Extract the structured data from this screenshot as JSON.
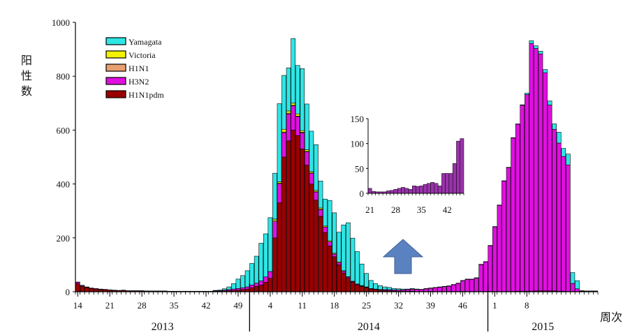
{
  "chart_data": [
    {
      "type": "bar",
      "stacked": true,
      "ylabel": "阳性数",
      "xlabel": "周次",
      "ylim": [
        0,
        1000
      ],
      "yticks": [
        0,
        200,
        400,
        600,
        800,
        1000
      ],
      "x_start_week": 14,
      "xticks": [
        "14",
        "21",
        "28",
        "35",
        "42",
        "49",
        "4",
        "11",
        "18",
        "25",
        "32",
        "39",
        "46",
        "1",
        "8"
      ],
      "year_labels": [
        "2013",
        "2014",
        "2015"
      ],
      "legend": {
        "placement": "top-left",
        "entries": [
          "Yamagata",
          "Victoria",
          "H1N1",
          "H3N2",
          "H1N1pdm"
        ]
      },
      "colors": {
        "Yamagata": "#2ee6e6",
        "Victoria": "#f2f200",
        "H1N1": "#e8a070",
        "H3N2": "#e00fe0",
        "H1N1pdm": "#990000",
        "outline": "#000000"
      },
      "arrow_color": "#5b82c0",
      "grid": false,
      "series": [
        {
          "name": "H1N1pdm",
          "values": [
            30,
            20,
            15,
            12,
            10,
            8,
            7,
            6,
            5,
            4,
            5,
            3,
            3,
            3,
            3,
            2,
            2,
            2,
            2,
            2,
            1,
            1,
            1,
            1,
            1,
            1,
            1,
            1,
            1,
            1,
            2,
            2,
            3,
            4,
            5,
            6,
            8,
            10,
            15,
            20,
            25,
            35,
            50,
            200,
            330,
            500,
            560,
            600,
            580,
            530,
            470,
            400,
            340,
            280,
            220,
            170,
            130,
            100,
            70,
            50,
            35,
            25,
            20,
            15,
            10,
            8,
            6,
            5,
            4,
            3,
            2,
            2,
            2,
            2,
            1,
            1,
            1,
            1,
            1,
            1,
            1,
            1,
            1,
            1,
            1,
            1,
            1,
            1,
            1,
            1,
            1,
            1,
            1,
            1,
            1,
            1,
            2,
            2,
            2,
            2,
            3,
            3,
            3,
            3,
            3,
            2,
            2,
            1,
            1,
            1,
            1,
            1,
            1,
            1
          ]
        },
        {
          "name": "H3N2",
          "values": [
            5,
            3,
            2,
            2,
            2,
            2,
            2,
            1,
            1,
            1,
            1,
            1,
            1,
            1,
            1,
            1,
            1,
            1,
            1,
            1,
            1,
            1,
            1,
            1,
            1,
            1,
            1,
            1,
            1,
            1,
            2,
            2,
            3,
            4,
            5,
            6,
            7,
            8,
            10,
            12,
            15,
            20,
            25,
            60,
            70,
            90,
            100,
            90,
            70,
            60,
            50,
            40,
            30,
            25,
            20,
            15,
            10,
            8,
            6,
            4,
            3,
            3,
            2,
            2,
            2,
            2,
            2,
            3,
            4,
            4,
            5,
            5,
            6,
            8,
            8,
            7,
            10,
            12,
            14,
            16,
            18,
            20,
            25,
            30,
            40,
            45,
            45,
            50,
            100,
            110,
            170,
            240,
            320,
            410,
            460,
            570,
            620,
            690,
            730,
            920,
            900,
            880,
            810,
            690,
            600,
            550,
            500,
            470,
            30,
            10,
            2,
            1,
            1,
            1
          ]
        },
        {
          "name": "H1N1",
          "values": [
            1,
            1,
            1,
            0,
            0,
            0,
            0,
            0,
            0,
            0,
            0,
            0,
            0,
            0,
            0,
            0,
            0,
            0,
            0,
            0,
            0,
            0,
            0,
            0,
            0,
            0,
            0,
            0,
            0,
            0,
            0,
            0,
            0,
            0,
            0,
            0,
            0,
            0,
            0,
            0,
            0,
            0,
            0,
            5,
            3,
            3,
            3,
            2,
            2,
            2,
            1,
            1,
            1,
            1,
            0,
            0,
            0,
            0,
            0,
            0,
            0,
            0,
            0,
            0,
            0,
            0,
            0,
            0,
            0,
            0,
            0,
            0,
            0,
            0,
            0,
            0,
            0,
            0,
            0,
            0,
            0,
            0,
            0,
            0,
            0,
            0,
            0,
            0,
            0,
            0,
            0,
            0,
            0,
            0,
            0,
            0,
            0,
            0,
            0,
            0,
            0,
            0,
            0,
            0,
            0,
            0,
            0,
            0,
            0,
            0,
            0,
            0,
            0,
            0
          ]
        },
        {
          "name": "Victoria",
          "values": [
            0,
            0,
            0,
            0,
            0,
            0,
            0,
            0,
            0,
            0,
            0,
            0,
            0,
            0,
            0,
            0,
            0,
            0,
            0,
            0,
            0,
            0,
            0,
            0,
            0,
            0,
            0,
            0,
            0,
            0,
            0,
            0,
            0,
            0,
            0,
            0,
            0,
            0,
            0,
            0,
            0,
            0,
            0,
            5,
            5,
            10,
            8,
            8,
            8,
            6,
            6,
            5,
            5,
            5,
            4,
            4,
            3,
            3,
            2,
            2,
            1,
            1,
            1,
            1,
            0,
            0,
            0,
            0,
            0,
            0,
            0,
            0,
            0,
            0,
            0,
            0,
            0,
            0,
            0,
            0,
            0,
            0,
            0,
            0,
            0,
            0,
            0,
            0,
            0,
            0,
            0,
            0,
            0,
            0,
            0,
            0,
            0,
            0,
            0,
            0,
            0,
            0,
            0,
            0,
            0,
            0,
            0,
            0,
            0,
            0,
            0,
            0,
            0,
            0
          ]
        },
        {
          "name": "Yamagata",
          "values": [
            0,
            0,
            0,
            0,
            0,
            0,
            0,
            0,
            0,
            0,
            0,
            0,
            0,
            0,
            0,
            0,
            0,
            0,
            0,
            0,
            0,
            0,
            0,
            0,
            0,
            0,
            0,
            0,
            0,
            0,
            1,
            2,
            5,
            10,
            20,
            35,
            45,
            60,
            80,
            100,
            140,
            160,
            200,
            170,
            290,
            200,
            160,
            240,
            180,
            230,
            170,
            150,
            170,
            100,
            100,
            150,
            150,
            110,
            170,
            200,
            160,
            120,
            80,
            50,
            30,
            20,
            15,
            10,
            8,
            5,
            4,
            3,
            2,
            2,
            1,
            1,
            1,
            1,
            1,
            1,
            1,
            1,
            1,
            1,
            1,
            1,
            1,
            1,
            1,
            1,
            1,
            1,
            1,
            1,
            1,
            1,
            1,
            2,
            5,
            10,
            10,
            10,
            12,
            15,
            20,
            40,
            30,
            40,
            40,
            30,
            1,
            1,
            1,
            1
          ]
        }
      ]
    },
    {
      "type": "bar",
      "inset": true,
      "ylim": [
        0,
        150
      ],
      "yticks": [
        0,
        50,
        100,
        150
      ],
      "x_start_week": 21,
      "xticks": [
        "21",
        "28",
        "35",
        "42"
      ],
      "series": [
        {
          "name": "H3N2",
          "values": [
            10,
            4,
            3,
            3,
            3,
            5,
            6,
            8,
            10,
            12,
            10,
            8,
            15,
            14,
            15,
            18,
            20,
            22,
            20,
            15,
            40,
            40,
            40,
            60,
            105,
            110
          ]
        }
      ]
    }
  ]
}
